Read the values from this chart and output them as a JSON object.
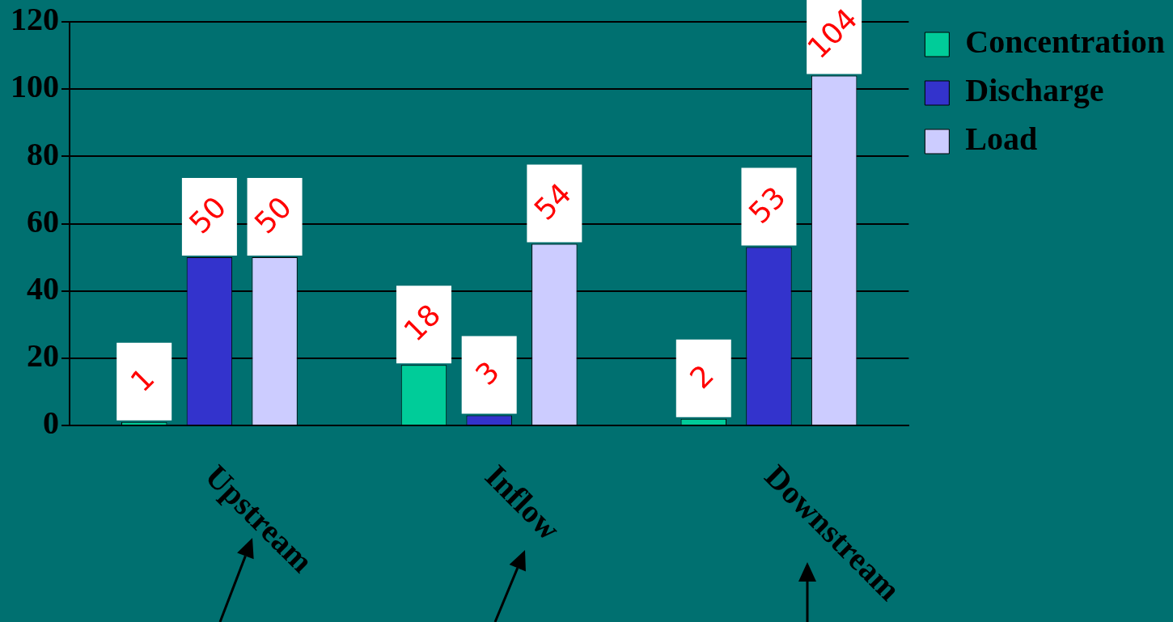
{
  "chart_data": {
    "type": "bar",
    "categories": [
      "Upstream",
      "Inflow",
      "Downstream"
    ],
    "series": [
      {
        "name": "Concentration",
        "color": "#00cc99",
        "values": [
          1,
          18,
          2
        ]
      },
      {
        "name": "Discharge",
        "color": "#3333cc",
        "values": [
          50,
          3,
          53
        ]
      },
      {
        "name": "Load",
        "color": "#ccccff",
        "values": [
          50,
          54,
          104
        ]
      }
    ],
    "ylim": [
      0,
      120
    ],
    "yticks": [
      0,
      20,
      40,
      60,
      80,
      100,
      120
    ],
    "grid": "y",
    "legend": "top right",
    "data_labels": true
  }
}
